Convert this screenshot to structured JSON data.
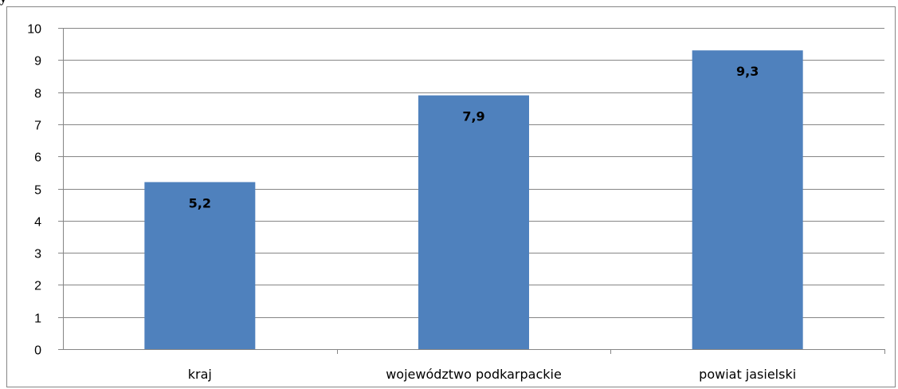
{
  "header": {
    "title_fragment": "y  "
  },
  "chart_data": {
    "type": "bar",
    "categories": [
      "kraj",
      "województwo  podkarpackie",
      "powiat jasielski"
    ],
    "values": [
      5.2,
      7.9,
      9.3
    ],
    "data_labels": [
      "5,2",
      "7,9",
      "9,3"
    ],
    "ylim": [
      0,
      10
    ],
    "yticks": [
      "0",
      "1",
      "2",
      "3",
      "4",
      "5",
      "6",
      "7",
      "8",
      "9",
      "10"
    ],
    "grid": true,
    "bar_color": "#4f81bd",
    "gridline_color": "#868686"
  }
}
